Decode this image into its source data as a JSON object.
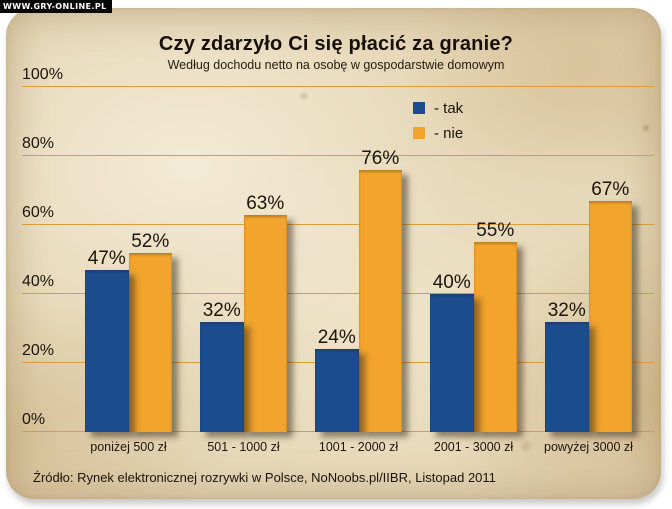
{
  "watermark": {
    "label": "WWW.GRY-ONLINE.PL"
  },
  "legend": {
    "items": [
      {
        "label": "- tak",
        "color": "#1b4d8e"
      },
      {
        "label": "- nie",
        "color": "#f2a42c"
      }
    ]
  },
  "source": {
    "text": "Źródło: Rynek elektronicznej rozrywki w Polsce, NoNoobs.pl/IIBR, Listopad 2011"
  },
  "chart_data": {
    "type": "bar",
    "title": "Czy zdarzyło Ci się płacić za granie?",
    "subtitle": "Według dochodu netto na osobę w gospodarstwie domowym",
    "categories": [
      "poniżej 500 zł",
      "501 - 1000 zł",
      "1001 - 2000 zł",
      "2001 - 3000 zł",
      "powyżej 3000 zł"
    ],
    "series": [
      {
        "name": "tak",
        "color": "#1b4d8e",
        "values": [
          47,
          32,
          24,
          40,
          32
        ]
      },
      {
        "name": "nie",
        "color": "#f2a42c",
        "values": [
          52,
          63,
          76,
          55,
          67
        ]
      }
    ],
    "value_suffix": "%",
    "y_ticks": [
      "0%",
      "20%",
      "40%",
      "60%",
      "80%",
      "100%"
    ],
    "ylim": [
      0,
      100
    ],
    "grid": true,
    "legend_position": "top-center",
    "colors": {
      "background_parchment": "#e6d8b8",
      "gridline": "#d89d3c",
      "text": "#1b140b"
    }
  }
}
